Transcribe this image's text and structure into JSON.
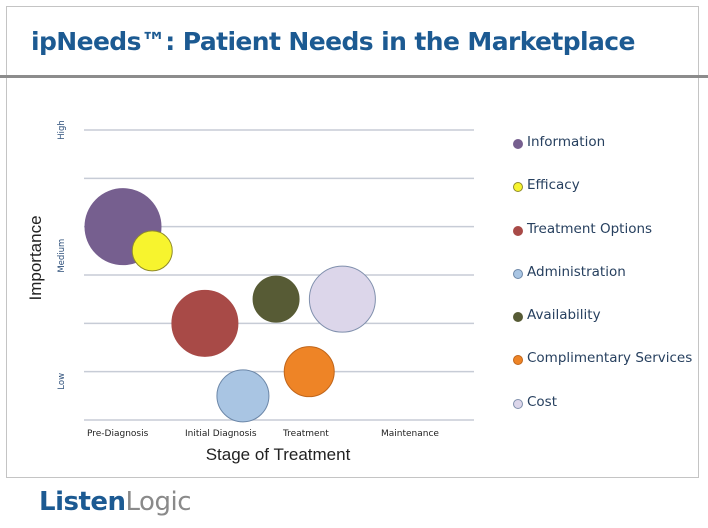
{
  "header": {
    "title": "ipNeeds™: Patient Needs in the Marketplace"
  },
  "footer": {
    "logo_part1": "Listen",
    "logo_part2": "Logic"
  },
  "chart_data": {
    "type": "bubble",
    "title": "",
    "xlabel": "Stage of Treatment",
    "ylabel": "Importance",
    "x_categories": [
      "Pre-Diagnosis",
      "Initial Diagnosis",
      "Treatment",
      "Maintenance"
    ],
    "y_tick_labels": [
      {
        "label": "Low",
        "value": 0.4
      },
      {
        "label": "Medium",
        "value": 1.7
      },
      {
        "label": "High",
        "value": 3.0
      }
    ],
    "xlim": [
      0,
      4
    ],
    "ylim": [
      0,
      3
    ],
    "gridlines": [
      0,
      0.5,
      1,
      1.5,
      2,
      2.5,
      3
    ],
    "grid": true,
    "legend_position": "right",
    "series": [
      {
        "name": "Information",
        "x": 0.4,
        "y": 2.0,
        "size": 38,
        "color": "#765f8f",
        "stroke": "#765f8f"
      },
      {
        "name": "Efficacy",
        "x": 0.7,
        "y": 1.75,
        "size": 20,
        "color": "#f7f42e",
        "stroke": "#8f8a2a"
      },
      {
        "name": "Treatment Options",
        "x": 1.24,
        "y": 1.0,
        "size": 33,
        "color": "#a84a47",
        "stroke": "#a84a47"
      },
      {
        "name": "Administration",
        "x": 1.63,
        "y": 0.25,
        "size": 26,
        "color": "#a9c5e3",
        "stroke": "#6c87a8"
      },
      {
        "name": "Availability",
        "x": 1.97,
        "y": 1.25,
        "size": 23,
        "color": "#575b35",
        "stroke": "#575b35"
      },
      {
        "name": "Complimentary Services",
        "x": 2.31,
        "y": 0.5,
        "size": 25,
        "color": "#ee8426",
        "stroke": "#c0651a"
      },
      {
        "name": "Cost",
        "x": 2.65,
        "y": 1.25,
        "size": 33,
        "color": "#dcd6ea",
        "stroke": "#8090ad"
      }
    ]
  }
}
